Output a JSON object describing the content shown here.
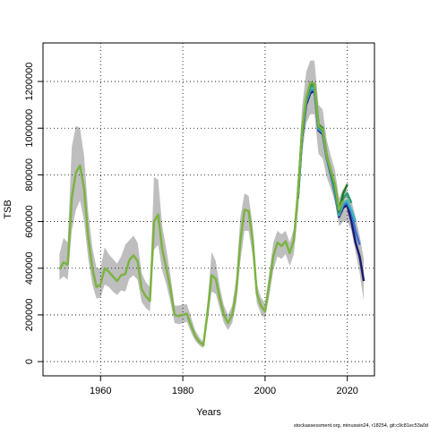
{
  "chart_data": {
    "type": "line",
    "x_label": "Years",
    "y_label": "TSB",
    "footer": "stockassessment.org, minuswin24, r18254, git:c9c81ec53a0d",
    "xlim": [
      1946,
      2026.6
    ],
    "ylim": [
      -61000,
      1365000
    ],
    "xticks": [
      1960,
      1980,
      2000,
      2020
    ],
    "yticks": [
      0,
      200000,
      400000,
      600000,
      800000,
      1000000,
      1200000
    ],
    "grid": true,
    "band": {
      "color": "#bebebe",
      "x": [
        1950,
        1951,
        1952,
        1953,
        1954,
        1955,
        1956,
        1957,
        1958,
        1959,
        1960,
        1961,
        1962,
        1963,
        1964,
        1965,
        1966,
        1967,
        1968,
        1969,
        1970,
        1971,
        1972,
        1973,
        1974,
        1975,
        1976,
        1977,
        1978,
        1979,
        1980,
        1981,
        1982,
        1983,
        1984,
        1985,
        1986,
        1987,
        1988,
        1989,
        1990,
        1991,
        1992,
        1993,
        1994,
        1995,
        1996,
        1997,
        1998,
        1999,
        2000,
        2001,
        2002,
        2003,
        2004,
        2005,
        2006,
        2007,
        2008,
        2009,
        2010,
        2011,
        2012,
        2013,
        2014,
        2015,
        2016,
        2017,
        2018,
        2019,
        2020,
        2021,
        2022,
        2023,
        2024
      ],
      "upper": [
        460000,
        530000,
        510000,
        920000,
        1010000,
        1000000,
        880000,
        640000,
        490000,
        400000,
        400000,
        490000,
        460000,
        440000,
        420000,
        450000,
        500000,
        520000,
        540000,
        510000,
        380000,
        340000,
        320000,
        790000,
        780000,
        580000,
        480000,
        370000,
        240000,
        240000,
        245000,
        245000,
        190000,
        135000,
        105000,
        85000,
        250000,
        470000,
        430000,
        320000,
        240000,
        200000,
        240000,
        360000,
        620000,
        720000,
        710000,
        580000,
        330000,
        275000,
        250000,
        380000,
        510000,
        560000,
        545000,
        560000,
        510000,
        570000,
        790000,
        1090000,
        1240000,
        1290000,
        1290000,
        1100000,
        1080000,
        950000,
        880000,
        820000,
        700000,
        740000,
        730000,
        690000,
        620000,
        540000,
        440000
      ],
      "lower": [
        350000,
        365000,
        350000,
        560000,
        650000,
        690000,
        600000,
        440000,
        330000,
        270000,
        275000,
        330000,
        320000,
        300000,
        285000,
        305000,
        300000,
        355000,
        370000,
        350000,
        255000,
        230000,
        215000,
        480000,
        500000,
        390000,
        330000,
        255000,
        165000,
        160000,
        165000,
        170000,
        125000,
        90000,
        70000,
        58000,
        170000,
        300000,
        290000,
        225000,
        165000,
        135000,
        165000,
        250000,
        430000,
        560000,
        560000,
        450000,
        250000,
        205000,
        185000,
        280000,
        390000,
        450000,
        440000,
        460000,
        410000,
        460000,
        640000,
        890000,
        1020000,
        1060000,
        1060000,
        890000,
        870000,
        790000,
        740000,
        680000,
        580000,
        600000,
        600000,
        560000,
        470000,
        380000,
        260000
      ]
    },
    "series": [
      {
        "color": "#1a1a6e",
        "x": [
          2008,
          2009,
          2010,
          2011,
          2012,
          2013,
          2014,
          2015,
          2016,
          2017,
          2018,
          2019,
          2020,
          2021,
          2022,
          2023,
          2024
        ],
        "values": [
          700000,
          960000,
          1100000,
          1150000,
          1160000,
          990000,
          975000,
          870000,
          800000,
          720000,
          620000,
          660000,
          670000,
          600000,
          510000,
          450000,
          345000
        ]
      },
      {
        "color": "#3b6fd1",
        "x": [
          2008,
          2009,
          2010,
          2011,
          2012,
          2013,
          2014,
          2015,
          2016,
          2017,
          2018,
          2019,
          2020,
          2021,
          2022,
          2023
        ],
        "values": [
          705000,
          965000,
          1110000,
          1160000,
          1165000,
          995000,
          980000,
          872000,
          805000,
          725000,
          625000,
          670000,
          680000,
          640000,
          560000,
          500000
        ]
      },
      {
        "color": "#41b6c4",
        "x": [
          2008,
          2009,
          2010,
          2011,
          2012,
          2013,
          2014,
          2015,
          2016,
          2017,
          2018,
          2019,
          2020,
          2021,
          2022
        ],
        "values": [
          710000,
          970000,
          1115000,
          1170000,
          1170000,
          1000000,
          985000,
          875000,
          808000,
          730000,
          628000,
          680000,
          690000,
          650000,
          600000
        ]
      },
      {
        "color": "#2c9d6e",
        "x": [
          2008,
          2009,
          2010,
          2011,
          2012,
          2013,
          2014,
          2015,
          2016,
          2017,
          2018,
          2019,
          2020,
          2021
        ],
        "values": [
          712000,
          975000,
          1120000,
          1180000,
          1180000,
          1005000,
          988000,
          878000,
          812000,
          740000,
          635000,
          700000,
          720000,
          680000
        ]
      },
      {
        "color": "#1b7a2b",
        "x": [
          2008,
          2009,
          2010,
          2011,
          2012,
          2013,
          2014,
          2015,
          2016,
          2017,
          2018,
          2019,
          2020
        ],
        "values": [
          718000,
          985000,
          1125000,
          1190000,
          1190000,
          1015000,
          1000000,
          882000,
          818000,
          755000,
          645000,
          720000,
          760000
        ]
      },
      {
        "color": "#7cb342",
        "x": [
          1950,
          1951,
          1952,
          1953,
          1954,
          1955,
          1956,
          1957,
          1958,
          1959,
          1960,
          1961,
          1962,
          1963,
          1964,
          1965,
          1966,
          1967,
          1968,
          1969,
          1970,
          1971,
          1972,
          1973,
          1974,
          1975,
          1976,
          1977,
          1978,
          1979,
          1980,
          1981,
          1982,
          1983,
          1984,
          1985,
          1986,
          1987,
          1988,
          1989,
          1990,
          1991,
          1992,
          1993,
          1994,
          1995,
          1996,
          1997,
          1998,
          1999,
          2000,
          2001,
          2002,
          2003,
          2004,
          2005,
          2006,
          2007,
          2008,
          2009,
          2010,
          2011,
          2012,
          2013,
          2014,
          2015,
          2016,
          2017,
          2018,
          2019
        ],
        "values": [
          395000,
          425000,
          415000,
          700000,
          810000,
          840000,
          740000,
          530000,
          400000,
          320000,
          330000,
          400000,
          385000,
          365000,
          345000,
          370000,
          375000,
          435000,
          455000,
          430000,
          310000,
          280000,
          260000,
          600000,
          630000,
          480000,
          400000,
          310000,
          200000,
          195000,
          200000,
          205000,
          155000,
          110000,
          85000,
          70000,
          210000,
          370000,
          355000,
          270000,
          200000,
          165000,
          200000,
          300000,
          520000,
          650000,
          645000,
          520000,
          290000,
          240000,
          215000,
          330000,
          450000,
          510000,
          495000,
          515000,
          465000,
          520000,
          720000,
          990000,
          1130000,
          1195000,
          1190000,
          1010000,
          995000,
          880000,
          820000,
          760000,
          650000,
          690000
        ]
      }
    ]
  }
}
